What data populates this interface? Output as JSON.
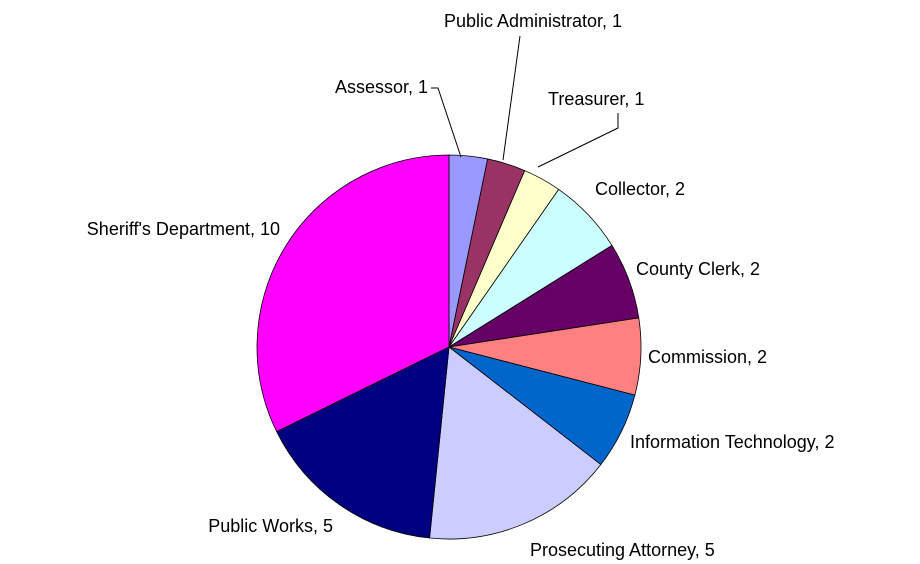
{
  "chart_data": {
    "type": "pie",
    "values": [
      1,
      1,
      1,
      2,
      2,
      2,
      2,
      5,
      5,
      10
    ],
    "value_labels": [
      "Assessor, 1",
      "Public Administrator, 1",
      "Treasurer, 1",
      "Collector, 2",
      "County Clerk, 2",
      "Commission, 2",
      "Information Technology, 2",
      "Prosecuting Attorney, 5",
      "Public Works, 5",
      "Sheriff's Department, 10"
    ],
    "colors": [
      "#9999ff",
      "#993366",
      "#ffffcc",
      "#ccffff",
      "#660066",
      "#ff8080",
      "#0066cc",
      "#ccccff",
      "#000080",
      "#ff00ff"
    ]
  }
}
